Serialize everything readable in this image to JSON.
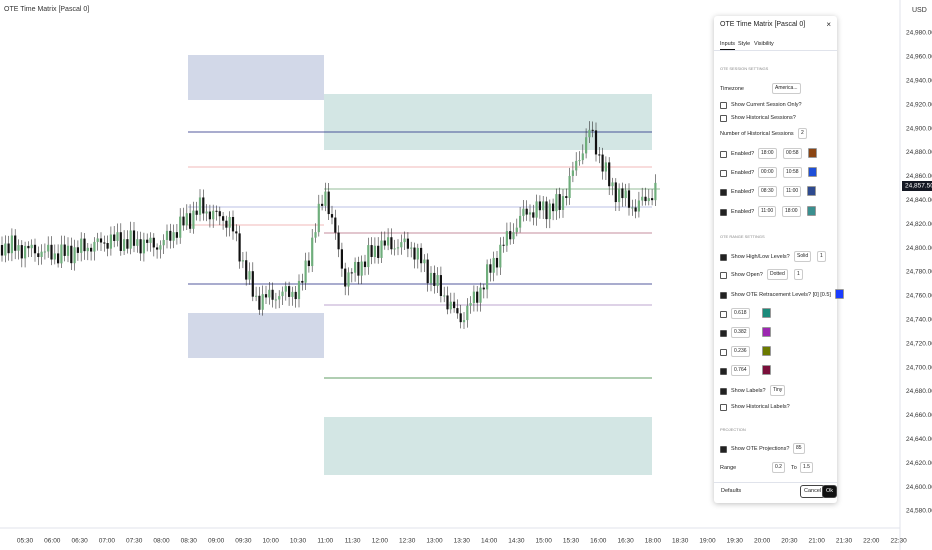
{
  "header": {
    "title": "OTE Time Matrix [Pascal 0]",
    "currency": "USD"
  },
  "price_axis": {
    "labels": [
      "24,980.00",
      "24,960.00",
      "24,940.00",
      "24,920.00",
      "24,900.00",
      "24,880.00",
      "24,860.00",
      "24,840.00",
      "24,820.00",
      "24,800.00",
      "24,780.00",
      "24,760.00",
      "24,740.00",
      "24,720.00",
      "24,700.00",
      "24,680.00",
      "24,660.00",
      "24,640.00",
      "24,620.00",
      "24,600.00",
      "24,580.00"
    ],
    "current": "24,857.50"
  },
  "time_axis": {
    "labels": [
      "05:30",
      "06:00",
      "06:30",
      "07:00",
      "07:30",
      "08:00",
      "08:30",
      "09:00",
      "09:30",
      "10:00",
      "10:30",
      "11:00",
      "11:30",
      "12:00",
      "12:30",
      "13:00",
      "13:30",
      "14:00",
      "14:30",
      "15:00",
      "15:30",
      "16:00",
      "16:30",
      "18:00",
      "18:30",
      "19:00",
      "19:30",
      "20:00",
      "20:30",
      "21:00",
      "21:30",
      "22:00",
      "22:30"
    ]
  },
  "dialog": {
    "title": "OTE Time Matrix [Pascal 0]",
    "tabs": [
      "Inputs",
      "Style",
      "Visibility"
    ],
    "rows": [
      {
        "heading": "OTE SESSION SETTINGS"
      },
      {
        "label": "Timezone",
        "fields": [
          "America..."
        ]
      },
      {
        "check": false,
        "label": "Show Current Session Only?"
      },
      {
        "check": false,
        "label": "Show Historical Sessions?"
      },
      {
        "label": "Number of Historical Sessions",
        "fields": [
          "2"
        ]
      },
      {
        "check": false,
        "label": "Enabled?",
        "fields": [
          "18:00",
          "00:58"
        ],
        "color": "#8b4513"
      },
      {
        "check": false,
        "label": "Enabled?",
        "fields": [
          "00:00",
          "10:58"
        ],
        "color": "#1e4fd8"
      },
      {
        "check": true,
        "label": "Enabled?",
        "fields": [
          "08:30",
          "11:00"
        ],
        "color": "#2e4a8f"
      },
      {
        "check": true,
        "label": "Enabled?",
        "fields": [
          "11:00",
          "18:00"
        ],
        "color": "#3a8f8f"
      },
      {
        "heading": "OTE RANGE SETTINGS"
      },
      {
        "check": true,
        "label": "Show High/Low Levels?",
        "fields": [
          "Solid",
          "1"
        ]
      },
      {
        "check": false,
        "label": "Show Open?",
        "fields": [
          "Dotted",
          "1"
        ]
      },
      {
        "check": true,
        "label": "Show OTE Retracement Levels? [0] [0.5]",
        "color": "#1a3cff"
      },
      {
        "check": false,
        "fields": [
          "0.618"
        ],
        "color": "#1b8a7a"
      },
      {
        "check": true,
        "fields": [
          "0.382"
        ],
        "color": "#9c27b0"
      },
      {
        "check": false,
        "fields": [
          "0.236"
        ],
        "color": "#6b7a00"
      },
      {
        "check": true,
        "fields": [
          "0.764"
        ],
        "color": "#7a0f3a"
      },
      {
        "check": true,
        "label": "Show Labels?",
        "fields": [
          "Tiny"
        ]
      },
      {
        "check": false,
        "label": "Show Historical Labels?"
      },
      {
        "heading": "PROJECTION"
      },
      {
        "check": true,
        "label": "Show OTE Projections?",
        "fields": [
          "85"
        ]
      },
      {
        "label": "Range",
        "fields": [
          "0.2",
          "1.5"
        ],
        "joiner": "To"
      }
    ],
    "buttons": {
      "defaults": "Defaults",
      "cancel": "Cancel",
      "ok": "Ok"
    }
  }
}
